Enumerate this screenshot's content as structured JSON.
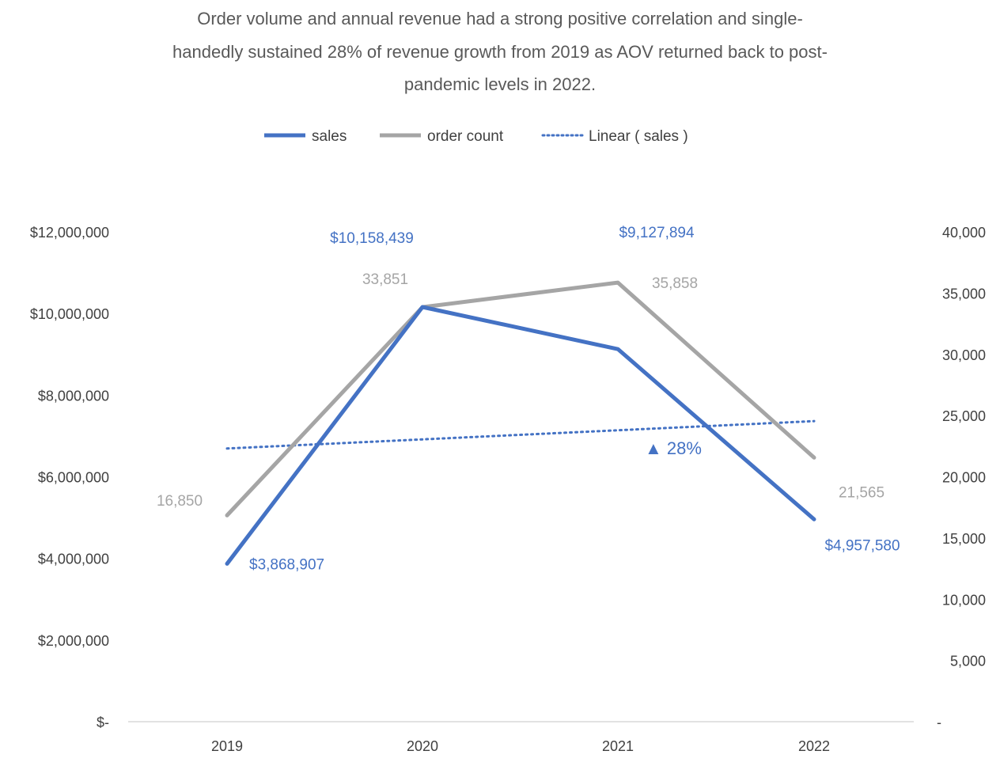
{
  "chart_data": {
    "type": "line",
    "title_lines": [
      "Order volume and annual revenue had a strong positive correlation and single-",
      "handedly sustained 28% of revenue growth from 2019 as AOV returned back to post-",
      "pandemic levels in 2022."
    ],
    "categories": [
      "2019",
      "2020",
      "2021",
      "2022"
    ],
    "series": [
      {
        "name": "sales",
        "axis": "left",
        "values": [
          3868907,
          10158439,
          9127894,
          4957580
        ],
        "labels": [
          "$3,868,907",
          "$10,158,439",
          "$9,127,894",
          "$4,957,580"
        ],
        "color": "#4472C4"
      },
      {
        "name": "order count",
        "axis": "right",
        "values": [
          16850,
          33851,
          35858,
          21565
        ],
        "labels": [
          "16,850",
          "33,851",
          "35,858",
          "21,565"
        ],
        "color": "#A5A5A5"
      }
    ],
    "trendline": {
      "name": "Linear ( sales )",
      "of": "sales",
      "style": "dotted",
      "color": "#4472C4"
    },
    "annotation": {
      "text": "▲ 28%",
      "color": "#4472C4"
    },
    "y_left": {
      "range": [
        0,
        12000000
      ],
      "ticks": [
        0,
        2000000,
        4000000,
        6000000,
        8000000,
        10000000,
        12000000
      ],
      "tick_labels": [
        "$-",
        "$2,000,000",
        "$4,000,000",
        "$6,000,000",
        "$8,000,000",
        "$10,000,000",
        "$12,000,000"
      ]
    },
    "y_right": {
      "range": [
        0,
        40000
      ],
      "ticks": [
        0,
        5000,
        10000,
        15000,
        20000,
        25000,
        30000,
        35000,
        40000
      ],
      "tick_labels": [
        "-",
        "5,000",
        "10,000",
        "15,000",
        "20,000",
        "25,000",
        "30,000",
        "35,000",
        "40,000"
      ]
    },
    "grid": false,
    "legend_position": "top"
  }
}
